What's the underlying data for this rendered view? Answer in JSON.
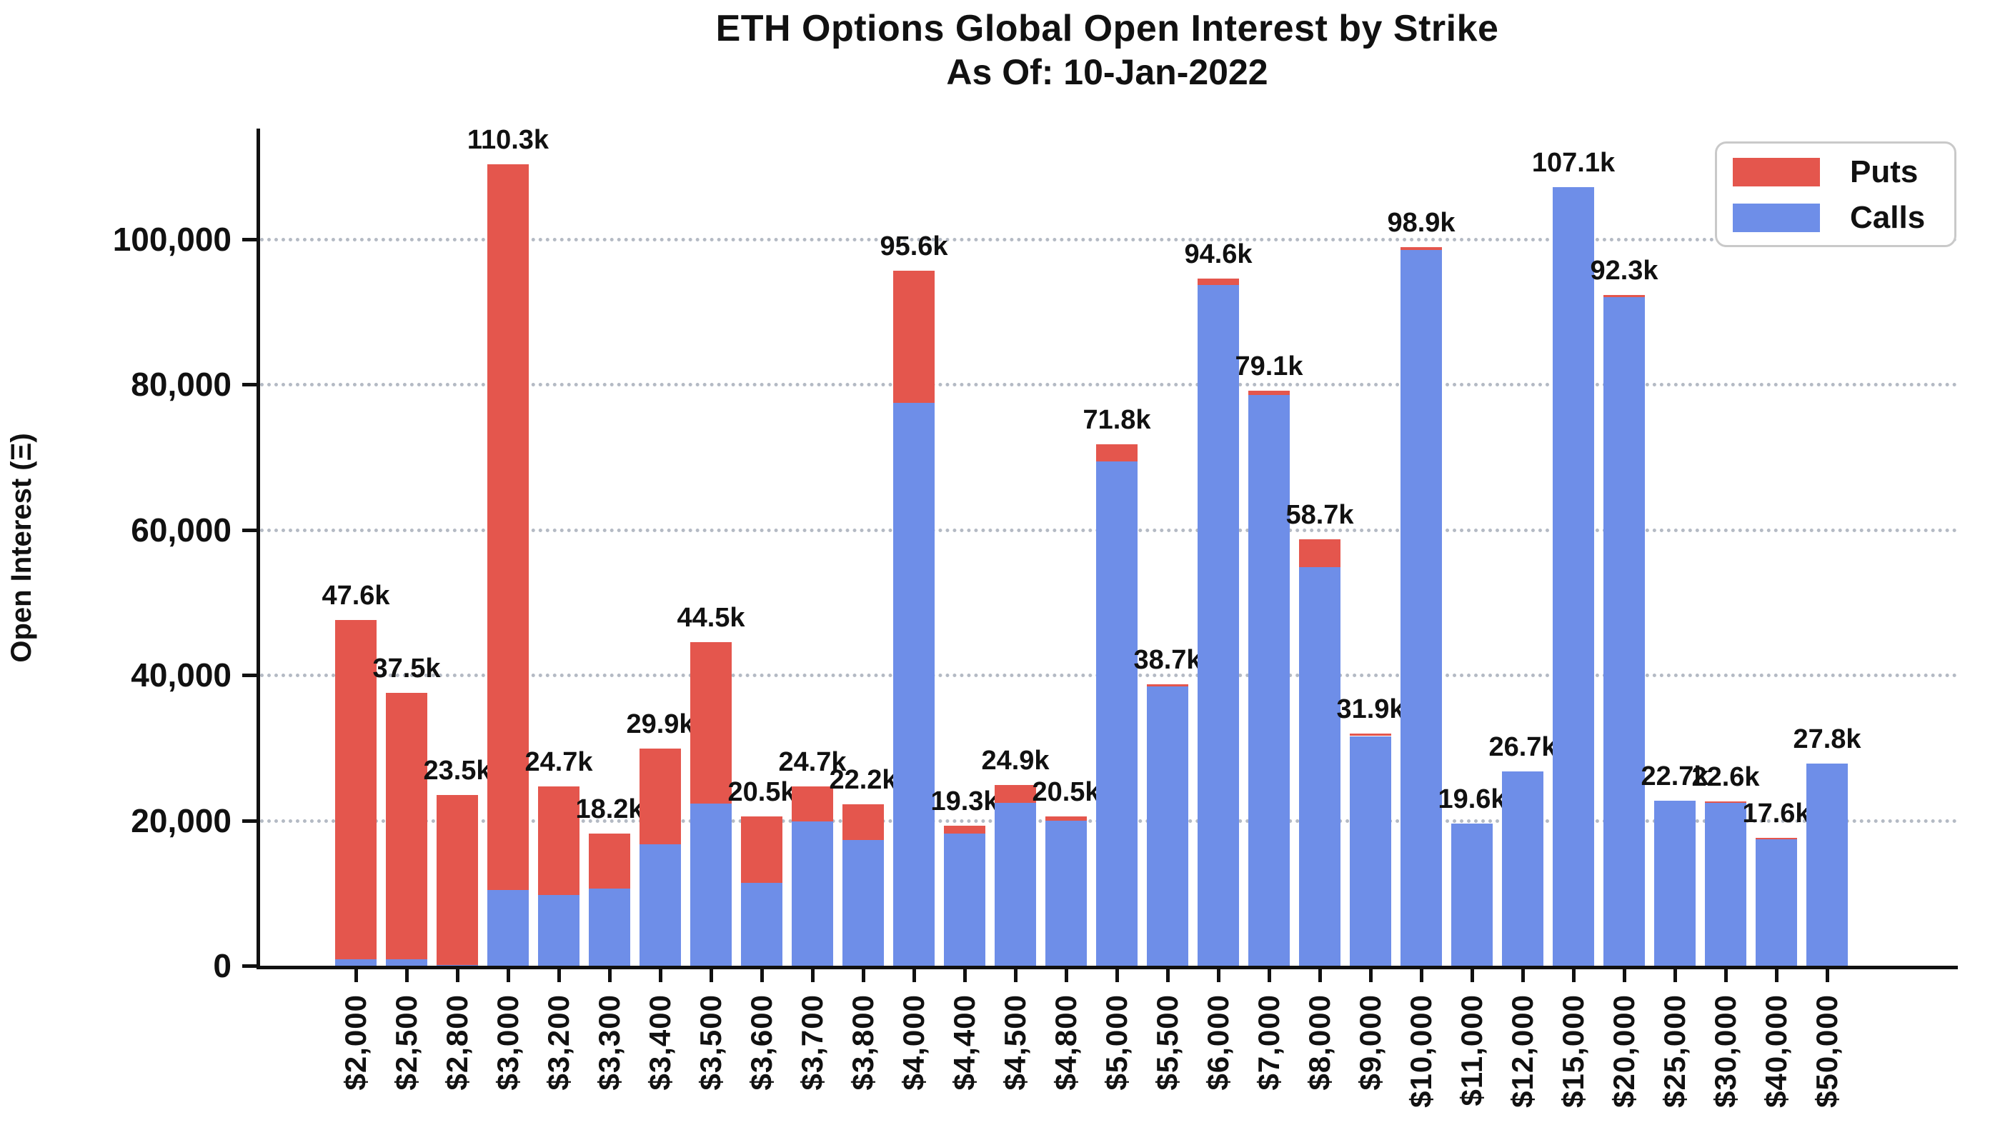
{
  "header": {
    "title": "ETH Options Global Open Interest by Strike",
    "subtitle": "As Of: 10-Jan-2022"
  },
  "legend": {
    "puts_label": "Puts",
    "calls_label": "Calls"
  },
  "colors": {
    "puts": "#e4564d",
    "calls": "#6e8ee8",
    "grid": "#b4bac4",
    "axis": "#111111",
    "legend_border": "#c9c9c9"
  },
  "y_axis": {
    "label": "Open Interest (Ξ)",
    "tick_labels": [
      "0",
      "20,000",
      "40,000",
      "60,000",
      "80,000",
      "100,000"
    ],
    "tick_values": [
      0,
      20000,
      40000,
      60000,
      80000,
      100000
    ],
    "max": 115000
  },
  "chart_data": {
    "type": "bar",
    "stacked": true,
    "title": "ETH Options Global Open Interest by Strike",
    "subtitle": "As Of: 10-Jan-2022",
    "xlabel": "",
    "ylabel": "Open Interest (Ξ)",
    "ylim": [
      0,
      115000
    ],
    "grid": "horizontal-dotted",
    "legend_position": "top-right",
    "categories": [
      "$2,000",
      "$2,500",
      "$2,800",
      "$3,000",
      "$3,200",
      "$3,300",
      "$3,400",
      "$3,500",
      "$3,600",
      "$3,700",
      "$3,800",
      "$4,000",
      "$4,400",
      "$4,500",
      "$4,800",
      "$5,000",
      "$5,500",
      "$6,000",
      "$7,000",
      "$8,000",
      "$9,000",
      "$10,000",
      "$11,000",
      "$12,000",
      "$15,000",
      "$20,000",
      "$25,000",
      "$30,000",
      "$40,000",
      "$50,000"
    ],
    "series": [
      {
        "name": "Calls",
        "color": "#6e8ee8",
        "values": [
          900,
          900,
          100,
          10400,
          9700,
          10600,
          16700,
          22300,
          11400,
          19900,
          17300,
          77500,
          18200,
          22400,
          20000,
          69400,
          38400,
          93700,
          78500,
          54800,
          31600,
          98500,
          19600,
          26700,
          107100,
          92000,
          22700,
          22400,
          17400,
          27800
        ]
      },
      {
        "name": "Puts",
        "color": "#e4564d",
        "values": [
          46700,
          36600,
          23400,
          99900,
          15000,
          7600,
          13200,
          22200,
          9100,
          4800,
          4900,
          18100,
          1100,
          2500,
          500,
          2400,
          300,
          900,
          600,
          3900,
          300,
          400,
          0,
          0,
          0,
          300,
          0,
          200,
          200,
          0
        ]
      }
    ],
    "totals": [
      47600,
      37500,
      23500,
      110300,
      24700,
      18200,
      29900,
      44500,
      20500,
      24700,
      22200,
      95600,
      19300,
      24900,
      20500,
      71800,
      38700,
      94600,
      79100,
      58700,
      31900,
      98900,
      19600,
      26700,
      107100,
      92300,
      22700,
      22600,
      17600,
      27800
    ],
    "total_labels": [
      "47.6k",
      "37.5k",
      "23.5k",
      "110.3k",
      "24.7k",
      "18.2k",
      "29.9k",
      "44.5k",
      "20.5k",
      "24.7k",
      "22.2k",
      "95.6k",
      "19.3k",
      "24.9k",
      "20.5k",
      "71.8k",
      "38.7k",
      "94.6k",
      "79.1k",
      "58.7k",
      "31.9k",
      "98.9k",
      "19.6k",
      "26.7k",
      "107.1k",
      "92.3k",
      "22.7k",
      "22.6k",
      "17.6k",
      "27.8k"
    ]
  }
}
